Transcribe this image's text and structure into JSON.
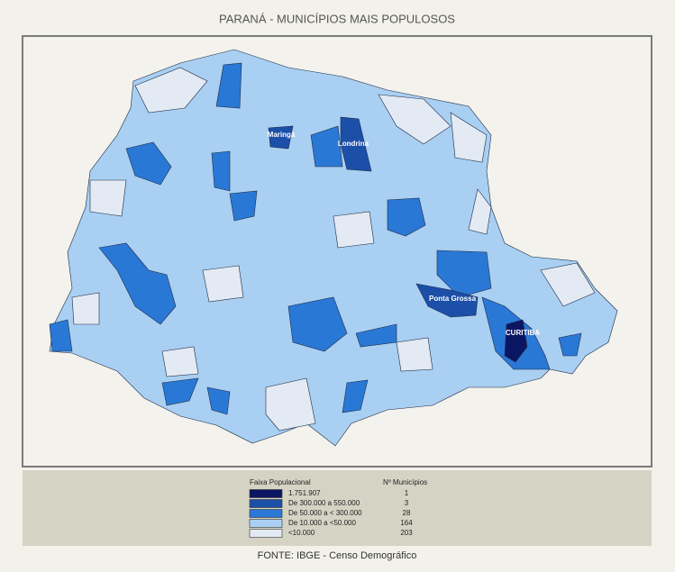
{
  "title": "PARANÁ - MUNICÍPIOS MAIS POPULOSOS",
  "cities": [
    "Maringá",
    "Londrina",
    "Ponta Grossa",
    "CURITIBA"
  ],
  "legend": {
    "header_class": "Faixa Populacional",
    "header_count": "Nº Municípios",
    "items": [
      {
        "label": "1.751.907",
        "count": 1,
        "color": "#0b1663"
      },
      {
        "label": "De 300.000 a 550.000",
        "count": 3,
        "color": "#1c4fa8"
      },
      {
        "label": "De 50.000 a < 300.000",
        "count": 28,
        "color": "#2a78d6"
      },
      {
        "label": "De 10.000 a <50.000",
        "count": 164,
        "color": "#a9cff2"
      },
      {
        "label": "<10.000",
        "count": 203,
        "color": "#e3eaf3"
      }
    ]
  },
  "source": "FONTE: IBGE - Censo Demográfico"
}
